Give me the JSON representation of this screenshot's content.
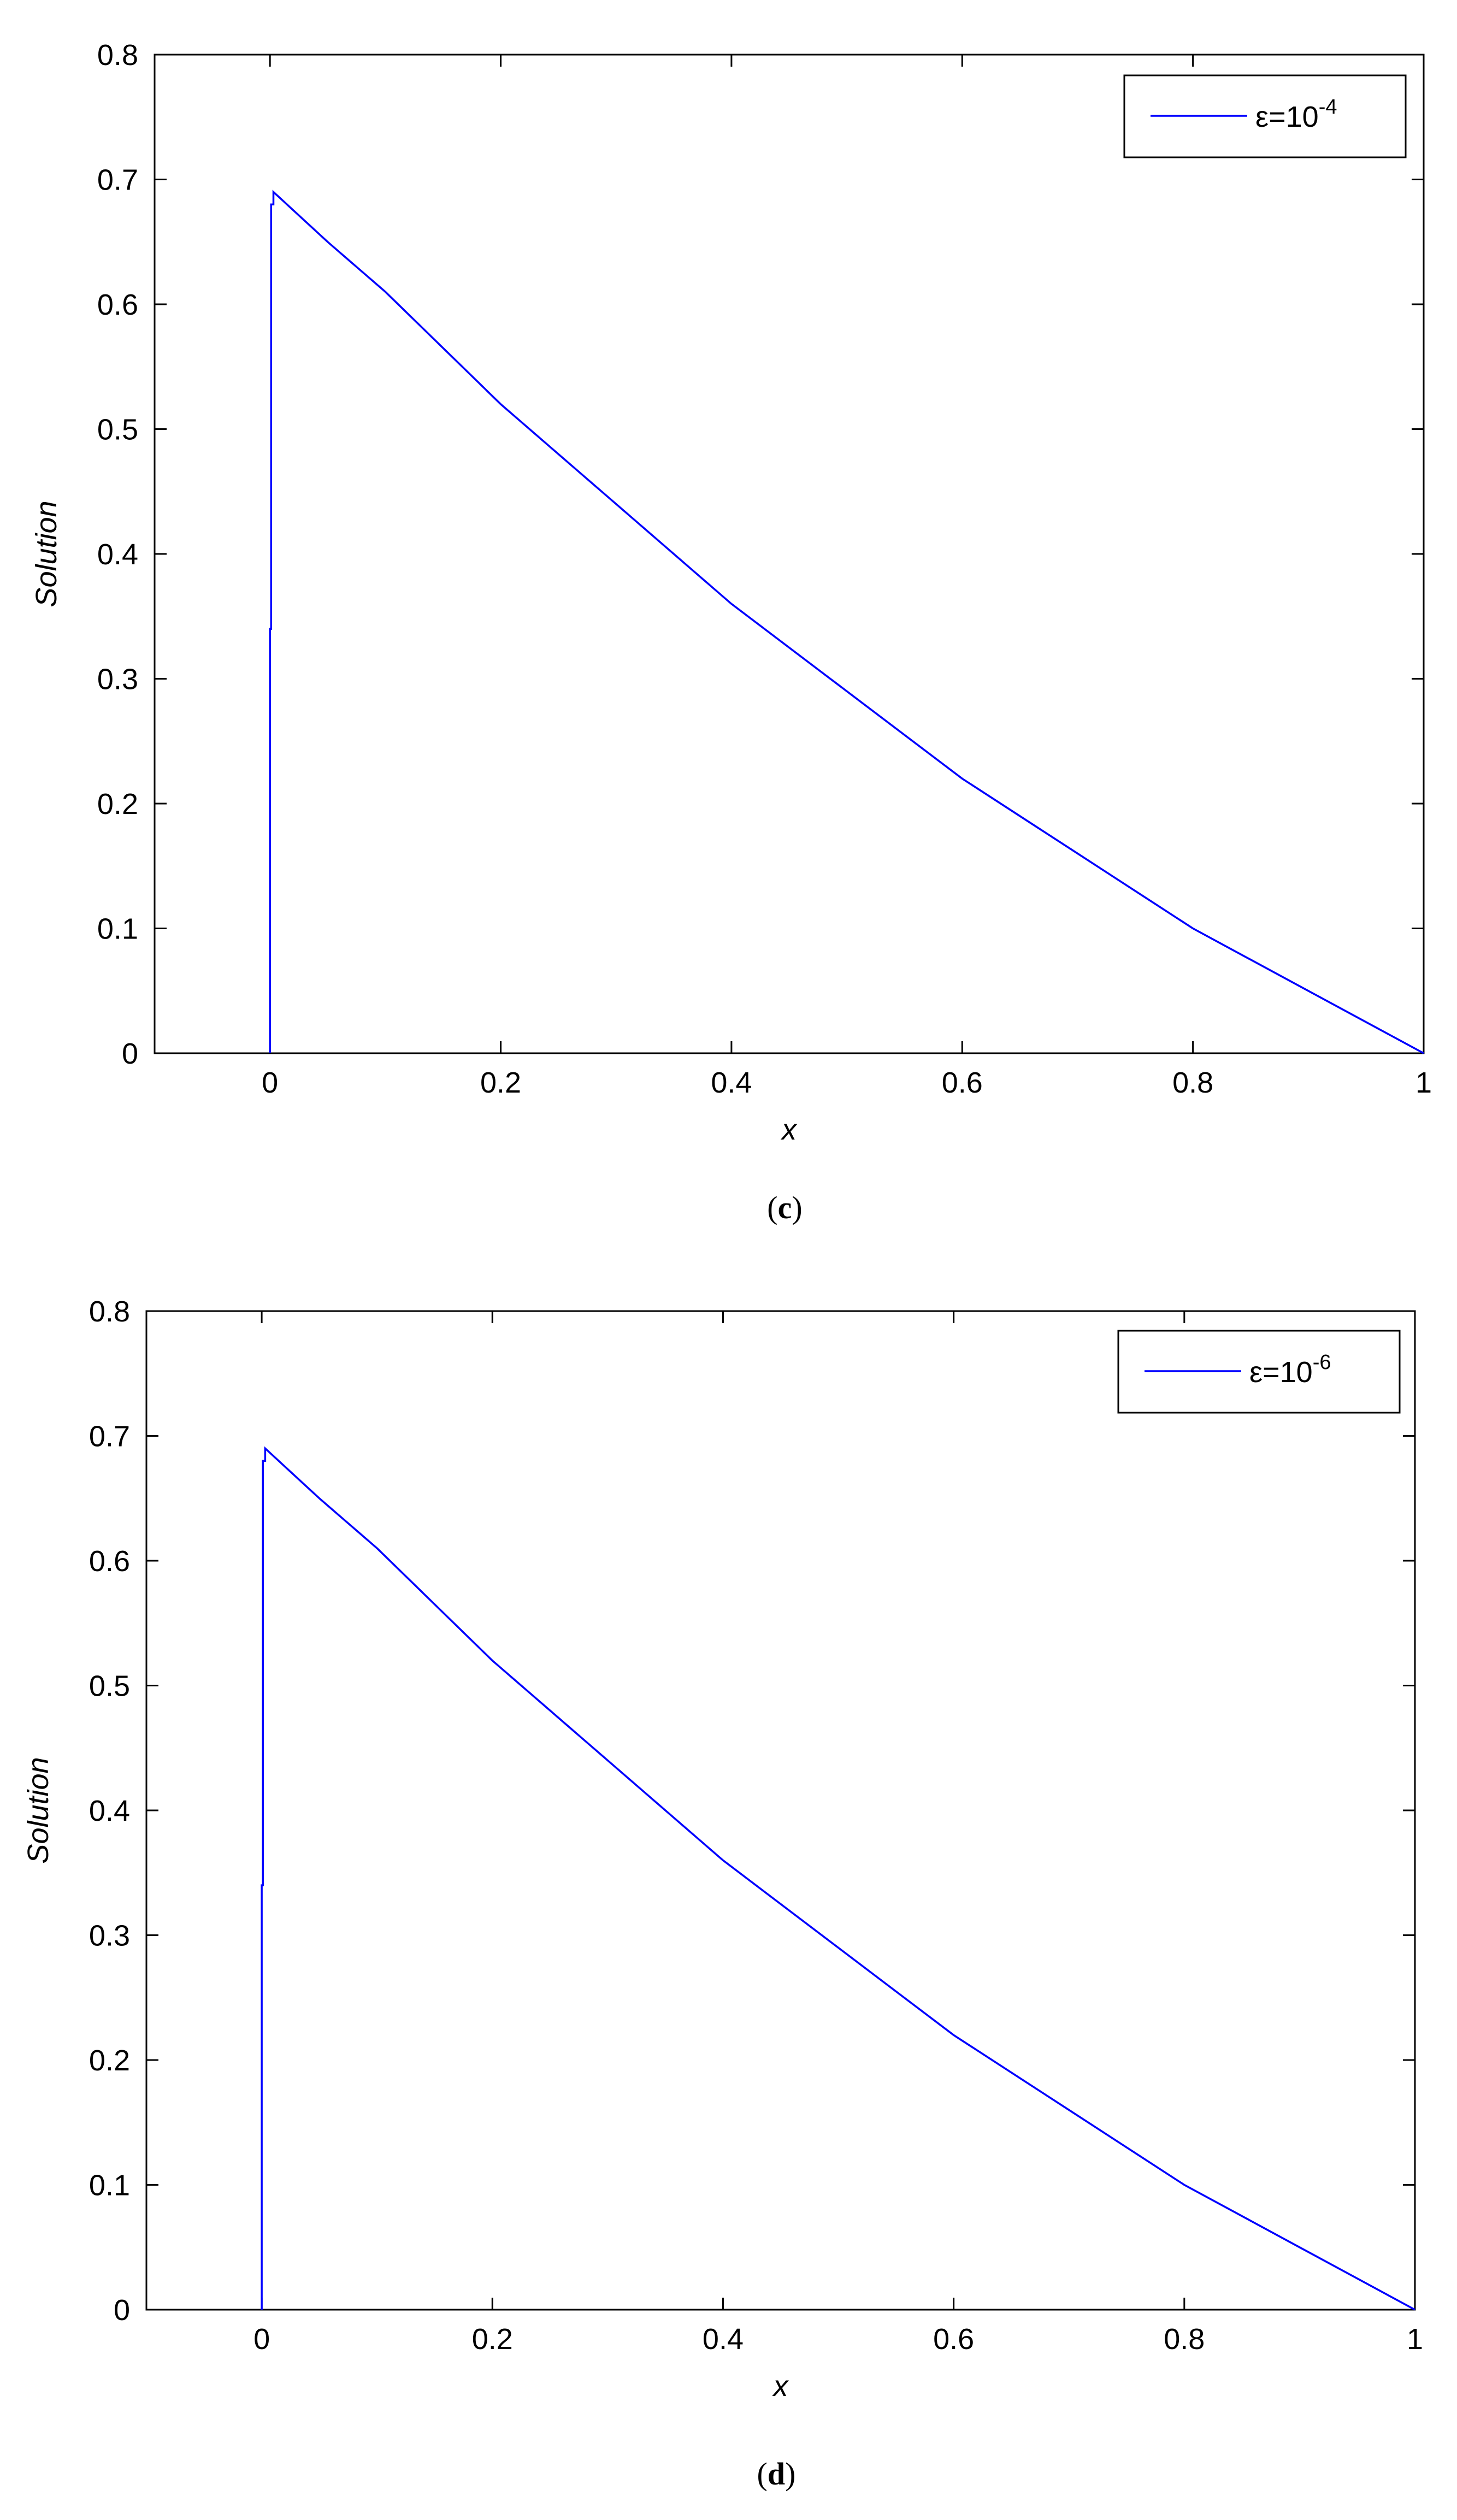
{
  "chart_data": [
    {
      "type": "line",
      "caption": {
        "open": "(",
        "letter": "c",
        "close": ")"
      },
      "xlabel": "x",
      "ylabel": "Solution",
      "xlim": [
        -0.1,
        1.0
      ],
      "ylim": [
        0,
        0.8
      ],
      "x_ticks": [
        "0",
        "0.2",
        "0.4",
        "0.6",
        "0.8",
        "1"
      ],
      "y_ticks": [
        "0",
        "0.1",
        "0.2",
        "0.3",
        "0.4",
        "0.5",
        "0.6",
        "0.7",
        "0.8"
      ],
      "series": [
        {
          "legend": {
            "base": "ε=10",
            "exp": "-4"
          },
          "color": "#0000ff",
          "x": [
            0,
            0,
            0.001,
            0.001,
            0.003,
            0.003,
            0.05,
            0.1,
            0.2,
            0.3,
            0.4,
            0.5,
            0.6,
            0.7,
            0.8,
            0.9,
            1.0
          ],
          "y": [
            0,
            0.34,
            0.34,
            0.68,
            0.68,
            0.69,
            0.65,
            0.61,
            0.52,
            0.44,
            0.36,
            0.29,
            0.22,
            0.16,
            0.1,
            0.05,
            0
          ]
        }
      ]
    },
    {
      "type": "line",
      "caption": {
        "open": "(",
        "letter": "d",
        "close": ")"
      },
      "xlabel": "x",
      "ylabel": "Solution",
      "xlim": [
        -0.1,
        1.0
      ],
      "ylim": [
        0,
        0.8
      ],
      "x_ticks": [
        "0",
        "0.2",
        "0.4",
        "0.6",
        "0.8",
        "1"
      ],
      "y_ticks": [
        "0",
        "0.1",
        "0.2",
        "0.3",
        "0.4",
        "0.5",
        "0.6",
        "0.7",
        "0.8"
      ],
      "series": [
        {
          "legend": {
            "base": "ε=10",
            "exp": "-6"
          },
          "color": "#0000ff",
          "x": [
            0,
            0,
            0.001,
            0.001,
            0.003,
            0.003,
            0.05,
            0.1,
            0.2,
            0.3,
            0.4,
            0.5,
            0.6,
            0.7,
            0.8,
            0.9,
            1.0
          ],
          "y": [
            0,
            0.34,
            0.34,
            0.68,
            0.68,
            0.69,
            0.65,
            0.61,
            0.52,
            0.44,
            0.36,
            0.29,
            0.22,
            0.16,
            0.1,
            0.05,
            0
          ]
        }
      ]
    }
  ]
}
